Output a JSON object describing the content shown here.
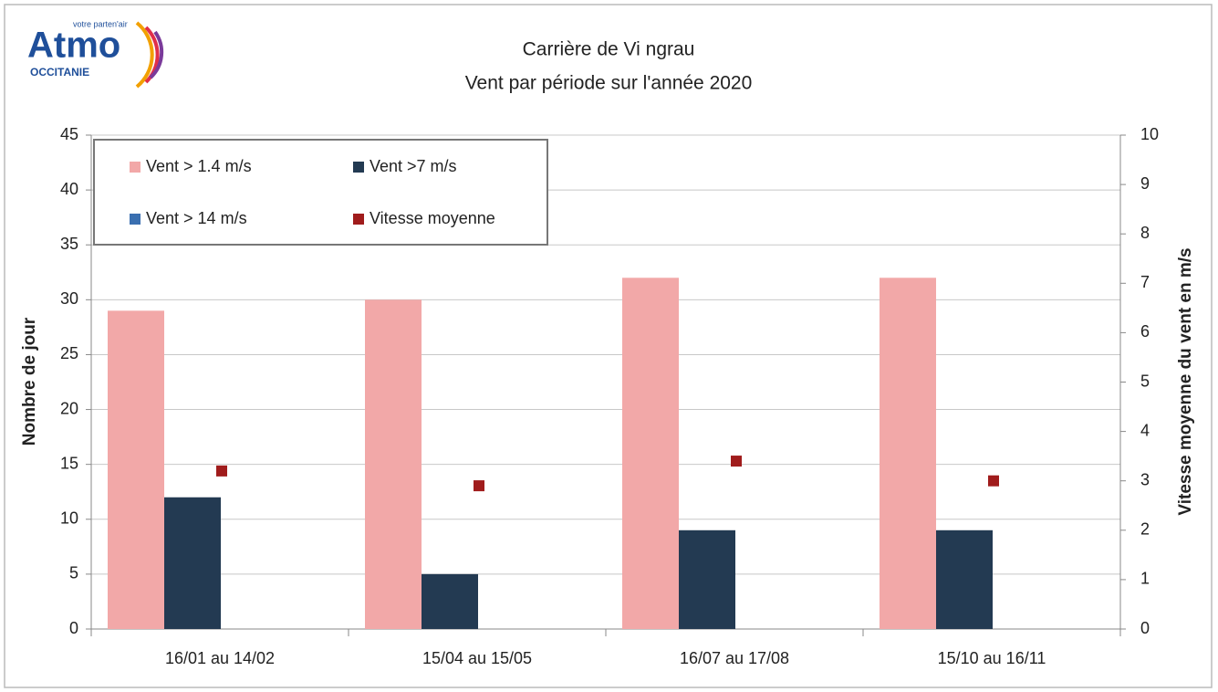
{
  "logo": {
    "name": "Atmo",
    "region": "OCCITANIE",
    "tagline": "votre parten'air"
  },
  "chart_data": {
    "type": "bar",
    "title": "Carrière de Vi ngrau",
    "subtitle": "Vent par période sur l'année 2020",
    "y_label": "Nombre de jour",
    "y2_label": "Vitesse moyenne du vent en m/s",
    "categories": [
      "16/01 au 14/02",
      "15/04 au 15/05",
      "16/07 au 17/08",
      "15/10 au 16/11"
    ],
    "series": [
      {
        "name": "Vent > 1.4 m/s",
        "color": "#f2a8a8",
        "values": [
          29,
          30,
          32,
          32
        ]
      },
      {
        "name": "Vent >7 m/s",
        "color": "#233a52",
        "values": [
          12,
          5,
          9,
          9
        ]
      },
      {
        "name": "Vent > 14 m/s",
        "color": "#3a6fb0",
        "values": [
          0,
          0,
          0,
          0
        ]
      },
      {
        "name": "Vitesse moyenne",
        "color": "#a01c1c",
        "axis": "y2",
        "values": [
          3.2,
          2.9,
          3.4,
          3.0
        ]
      }
    ],
    "ylim": [
      0,
      45
    ],
    "yticks": [
      0,
      5,
      10,
      15,
      20,
      25,
      30,
      35,
      40,
      45
    ],
    "y2lim": [
      0,
      10
    ],
    "y2ticks": [
      0,
      1,
      2,
      3,
      4,
      5,
      6,
      7,
      8,
      9,
      10
    ],
    "grid": true,
    "legend": "top-left"
  }
}
